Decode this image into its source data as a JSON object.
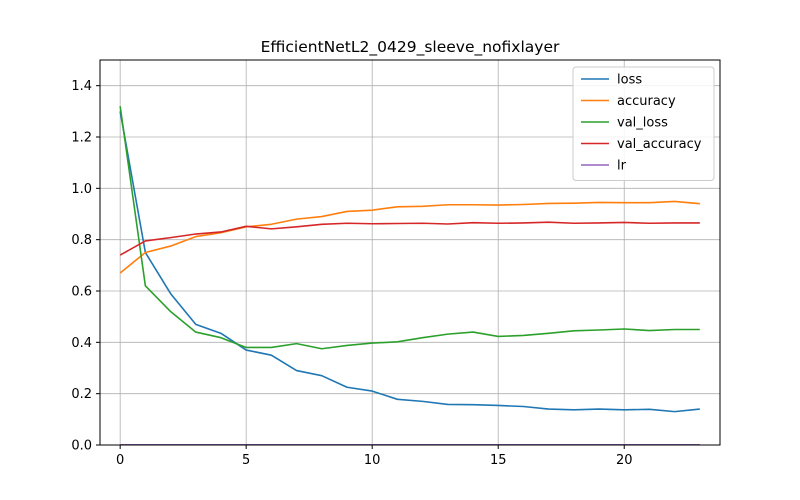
{
  "chart_data": {
    "type": "line",
    "title": "EfficientNetL2_0429_sleeve_nofixlayer",
    "xlabel": "",
    "ylabel": "",
    "xlim": [
      -0.8,
      23.8
    ],
    "ylim": [
      0,
      1.5
    ],
    "xticks": [
      0,
      5,
      10,
      15,
      20
    ],
    "yticks": [
      0.0,
      0.2,
      0.4,
      0.6,
      0.8,
      1.0,
      1.2,
      1.4
    ],
    "xtick_labels": [
      "0",
      "5",
      "10",
      "15",
      "20"
    ],
    "ytick_labels": [
      "0.0",
      "0.2",
      "0.4",
      "0.6",
      "0.8",
      "1.0",
      "1.2",
      "1.4"
    ],
    "grid": true,
    "legend_position": "top-right",
    "x": [
      0,
      1,
      2,
      3,
      4,
      5,
      6,
      7,
      8,
      9,
      10,
      11,
      12,
      13,
      14,
      15,
      16,
      17,
      18,
      19,
      20,
      21,
      22,
      23
    ],
    "series": [
      {
        "name": "loss",
        "color": "#1f77b4",
        "values": [
          1.3,
          0.75,
          0.59,
          0.47,
          0.435,
          0.37,
          0.35,
          0.29,
          0.27,
          0.225,
          0.21,
          0.178,
          0.17,
          0.158,
          0.157,
          0.154,
          0.15,
          0.14,
          0.137,
          0.14,
          0.137,
          0.139,
          0.13,
          0.14
        ]
      },
      {
        "name": "accuracy",
        "color": "#ff7f0e",
        "values": [
          0.67,
          0.75,
          0.775,
          0.812,
          0.827,
          0.85,
          0.86,
          0.88,
          0.89,
          0.91,
          0.915,
          0.928,
          0.93,
          0.936,
          0.936,
          0.935,
          0.937,
          0.941,
          0.942,
          0.945,
          0.944,
          0.944,
          0.949,
          0.94
        ]
      },
      {
        "name": "val_loss",
        "color": "#2ca02c",
        "values": [
          1.32,
          0.62,
          0.52,
          0.44,
          0.418,
          0.38,
          0.38,
          0.395,
          0.375,
          0.388,
          0.397,
          0.402,
          0.418,
          0.432,
          0.44,
          0.423,
          0.427,
          0.435,
          0.445,
          0.448,
          0.452,
          0.446,
          0.45,
          0.45
        ]
      },
      {
        "name": "val_accuracy",
        "color": "#d62728",
        "values": [
          0.74,
          0.795,
          0.808,
          0.822,
          0.83,
          0.852,
          0.842,
          0.85,
          0.86,
          0.864,
          0.862,
          0.863,
          0.864,
          0.861,
          0.866,
          0.864,
          0.865,
          0.868,
          0.864,
          0.865,
          0.867,
          0.864,
          0.865,
          0.865
        ]
      },
      {
        "name": "lr",
        "color": "#9467bd",
        "values": [
          0.001,
          0.001,
          0.001,
          0.001,
          0.001,
          0.001,
          0.001,
          0.001,
          0.001,
          0.001,
          0.001,
          0.001,
          0.001,
          0.001,
          0.001,
          0.001,
          0.001,
          0.001,
          0.001,
          0.001,
          0.001,
          0.001,
          0.001,
          0.001
        ]
      }
    ]
  }
}
